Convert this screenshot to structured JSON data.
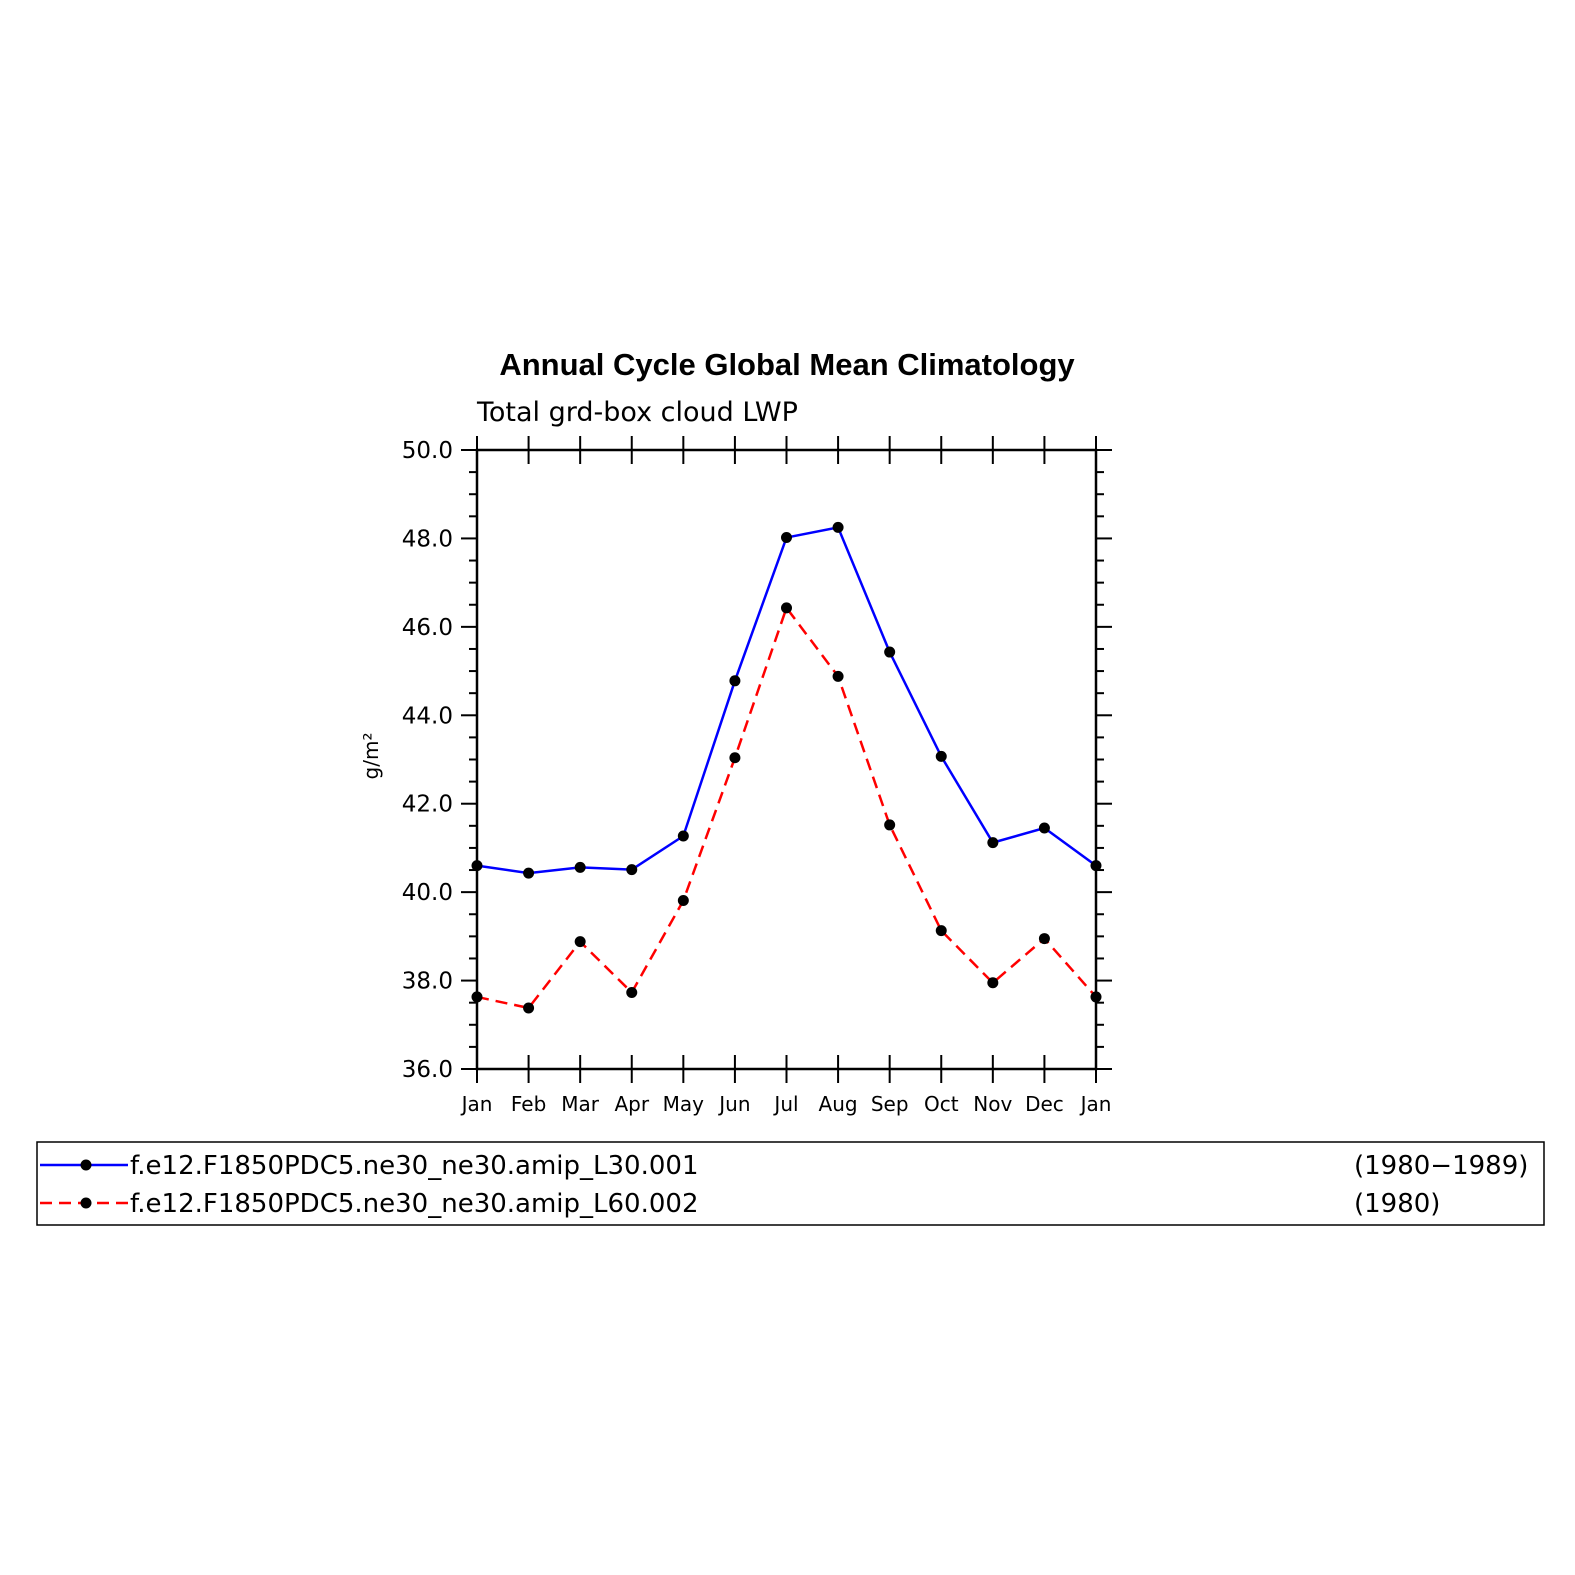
{
  "chart_data": {
    "type": "line",
    "title": "Annual Cycle Global Mean Climatology",
    "subtitle": "Total grd-box cloud LWP",
    "ylabel": "g/m²",
    "xlabel": "",
    "categories": [
      "Jan",
      "Feb",
      "Mar",
      "Apr",
      "May",
      "Jun",
      "Jul",
      "Aug",
      "Sep",
      "Oct",
      "Nov",
      "Dec",
      "Jan"
    ],
    "ylim": [
      36.0,
      50.0
    ],
    "y_ticks": [
      "36.0",
      "38.0",
      "40.0",
      "42.0",
      "44.0",
      "46.0",
      "48.0",
      "50.0"
    ],
    "grid": false,
    "legend_position": "bottom",
    "series": [
      {
        "name": "f.e12.F1850PDC5.ne30_ne30.amip_L30.001",
        "period": "(1980−1989)",
        "color": "#0000ff",
        "style": "solid",
        "marker_color": "#000000",
        "values": [
          40.6,
          40.43,
          40.56,
          40.51,
          41.27,
          44.78,
          48.02,
          48.25,
          45.43,
          43.07,
          41.12,
          41.45,
          40.6
        ]
      },
      {
        "name": "f.e12.F1850PDC5.ne30_ne30.amip_L60.002",
        "period": "(1980)",
        "color": "#ff0000",
        "style": "dashed",
        "marker_color": "#000000",
        "values": [
          37.63,
          37.38,
          38.88,
          37.73,
          39.81,
          43.04,
          46.43,
          44.88,
          41.52,
          39.13,
          37.95,
          38.95,
          37.63
        ]
      }
    ]
  }
}
